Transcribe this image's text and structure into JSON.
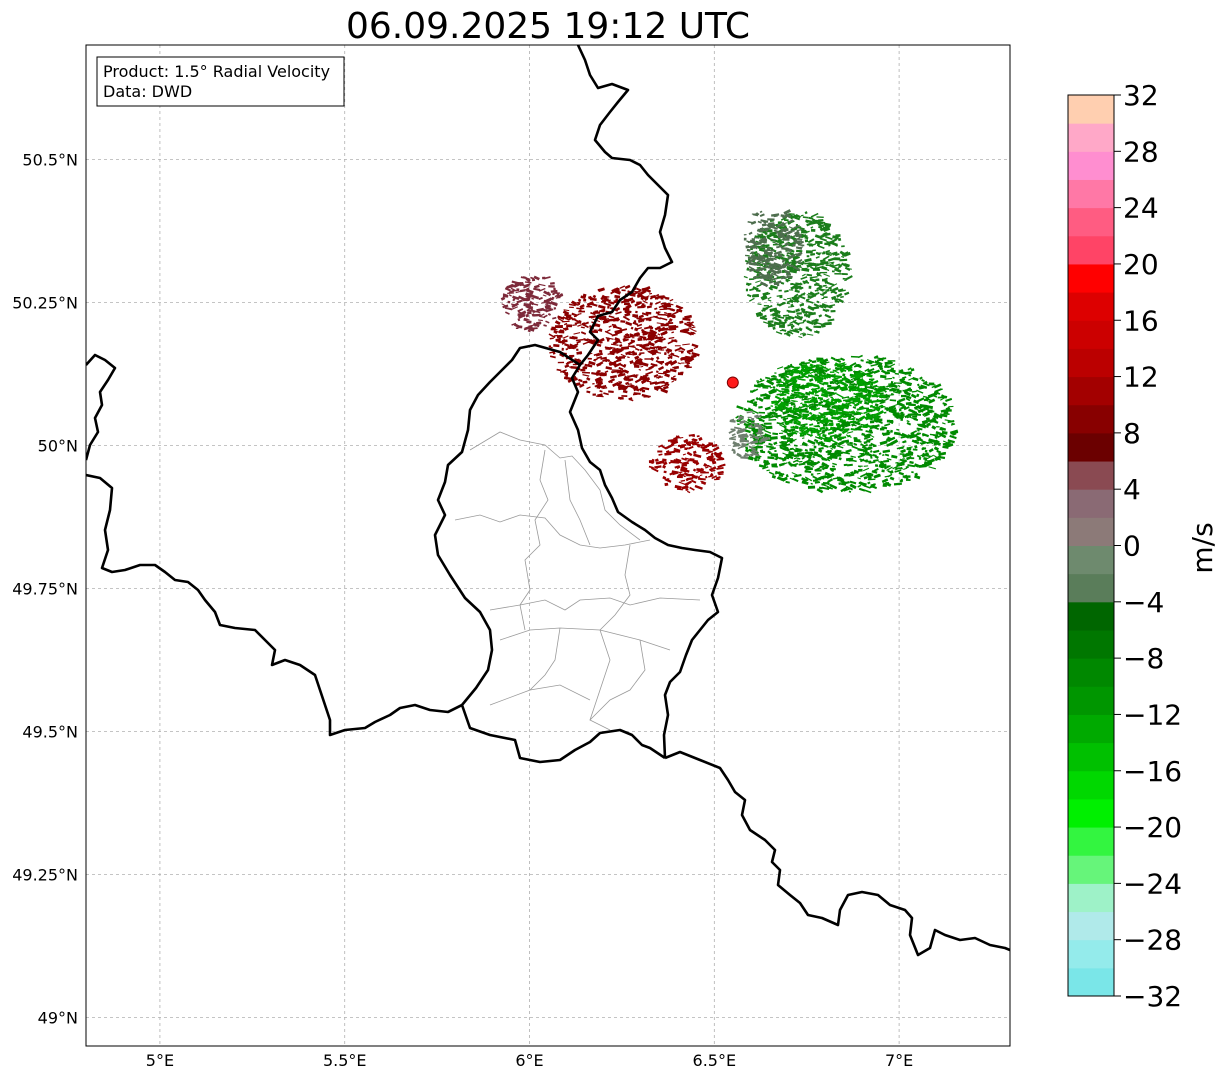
{
  "title": "06.09.2025 19:12 UTC",
  "info_box": {
    "product": "Product: 1.5° Radial Velocity",
    "data": "Data: DWD"
  },
  "map": {
    "lon_range": [
      4.8,
      7.3
    ],
    "lat_range": [
      48.95,
      50.7
    ],
    "lon_ticks": [
      {
        "value": 5.0,
        "label": "5°E"
      },
      {
        "value": 5.5,
        "label": "5.5°E"
      },
      {
        "value": 6.0,
        "label": "6°E"
      },
      {
        "value": 6.5,
        "label": "6.5°E"
      },
      {
        "value": 7.0,
        "label": "7°E"
      }
    ],
    "lat_ticks": [
      {
        "value": 49.0,
        "label": "49°N"
      },
      {
        "value": 49.25,
        "label": "49.25°N"
      },
      {
        "value": 49.5,
        "label": "49.5°N"
      },
      {
        "value": 49.75,
        "label": "49.75°N"
      },
      {
        "value": 50.0,
        "label": "50°N"
      },
      {
        "value": 50.25,
        "label": "50.25°N"
      },
      {
        "value": 50.5,
        "label": "50.5°N"
      }
    ],
    "grid": true,
    "radar_site": {
      "lon": 6.55,
      "lat": 50.11,
      "color": "#ff1a1a"
    },
    "echo_regions": [
      {
        "name": "inbound-strong",
        "color": "#008a00",
        "lon": 6.85,
        "lat": 50.04,
        "rx": 0.3,
        "ry": 0.12
      },
      {
        "name": "inbound-core",
        "color": "#00a000",
        "lon": 6.8,
        "lat": 50.08,
        "rx": 0.15,
        "ry": 0.07
      },
      {
        "name": "inbound-north",
        "color": "#1b7d1b",
        "lon": 6.72,
        "lat": 50.3,
        "rx": 0.14,
        "ry": 0.11
      },
      {
        "name": "inbound-weak",
        "color": "#4e6e4e",
        "lon": 6.65,
        "lat": 50.35,
        "rx": 0.08,
        "ry": 0.07
      },
      {
        "name": "outbound-strong",
        "color": "#8b0000",
        "lon": 6.25,
        "lat": 50.18,
        "rx": 0.2,
        "ry": 0.1
      },
      {
        "name": "outbound-south",
        "color": "#980000",
        "lon": 6.42,
        "lat": 49.97,
        "rx": 0.1,
        "ry": 0.05
      },
      {
        "name": "outbound-weak",
        "color": "#7d2a3a",
        "lon": 6.0,
        "lat": 50.25,
        "rx": 0.08,
        "ry": 0.05
      },
      {
        "name": "near-zero",
        "color": "#6f7f6f",
        "lon": 6.58,
        "lat": 50.02,
        "rx": 0.05,
        "ry": 0.04
      }
    ]
  },
  "colorbar": {
    "label": "m/s",
    "min": -32,
    "max": 32,
    "ticks": [
      -32,
      -28,
      -24,
      -20,
      -16,
      -12,
      -8,
      -4,
      0,
      4,
      8,
      12,
      16,
      20,
      24,
      28,
      32
    ],
    "tick_labels": [
      "−32",
      "−28",
      "−24",
      "−20",
      "−16",
      "−12",
      "−8",
      "−4",
      "0",
      "4",
      "8",
      "12",
      "16",
      "20",
      "24",
      "28",
      "32"
    ],
    "colors": [
      "#7ae6e8",
      "#94ebeb",
      "#b0eaea",
      "#9ef2c8",
      "#66f57a",
      "#33f540",
      "#00f000",
      "#00d800",
      "#00c000",
      "#00aa00",
      "#009600",
      "#008800",
      "#007700",
      "#006600",
      "#5a7d5a",
      "#6e8a6e",
      "#8c7a78",
      "#8a6a74",
      "#8a4a52",
      "#6b0000",
      "#880000",
      "#a30000",
      "#bb0000",
      "#cc0000",
      "#dd0000",
      "#ff0000",
      "#ff4466",
      "#ff5c82",
      "#ff78a6",
      "#ff8ed0",
      "#ffa8c8",
      "#ffcfb0"
    ]
  }
}
